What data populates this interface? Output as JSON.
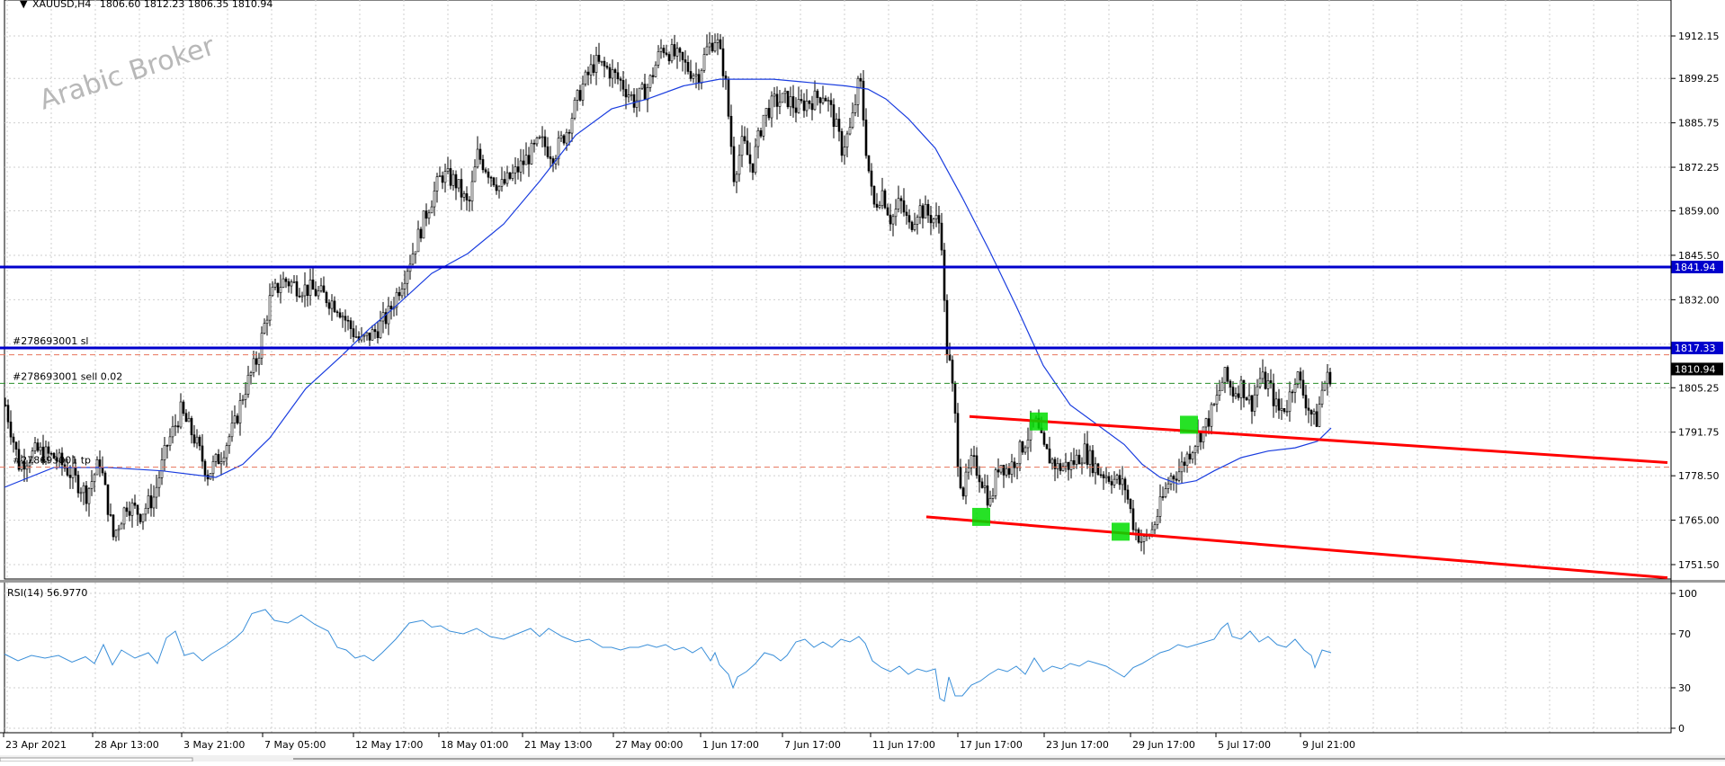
{
  "header": {
    "symbol_label": "XAUUSD,H4",
    "ohlc": "1806.60 1812.23 1806.35 1810.94"
  },
  "watermark": "Arabic Broker",
  "chart_data": [
    {
      "type": "candlestick",
      "symbol": "XAUUSD",
      "timeframe": "H4",
      "ylim": [
        1743,
        1924
      ],
      "y_ticks": [
        1912.15,
        1899.25,
        1885.75,
        1872.25,
        1859.0,
        1845.5,
        1832.0,
        1805.25,
        1791.75,
        1778.5,
        1765.0,
        1751.5
      ],
      "x_ticks": [
        "23 Apr 2021",
        "28 Apr 13:00",
        "3 May 21:00",
        "7 May 05:00",
        "12 May 17:00",
        "18 May 01:00",
        "21 May 13:00",
        "27 May 00:00",
        "1 Jun 17:00",
        "7 Jun 17:00",
        "11 Jun 17:00",
        "17 Jun 17:00",
        "23 Jun 17:00",
        "29 Jun 17:00",
        "5 Jul 17:00",
        "9 Jul 21:00"
      ],
      "x_ticks_left": [
        2,
        101,
        200,
        290,
        391,
        486,
        579,
        680,
        777,
        868,
        966,
        1063,
        1159,
        1255,
        1350,
        1444
      ],
      "grid": true,
      "price_path": [
        [
          5,
          1800
        ],
        [
          20,
          1782
        ],
        [
          40,
          1786
        ],
        [
          60,
          1784
        ],
        [
          75,
          1780
        ],
        [
          95,
          1773
        ],
        [
          110,
          1783
        ],
        [
          125,
          1760
        ],
        [
          140,
          1770
        ],
        [
          155,
          1767
        ],
        [
          170,
          1772
        ],
        [
          185,
          1788
        ],
        [
          200,
          1798
        ],
        [
          215,
          1790
        ],
        [
          230,
          1779
        ],
        [
          245,
          1785
        ],
        [
          260,
          1794
        ],
        [
          270,
          1804
        ],
        [
          285,
          1814
        ],
        [
          300,
          1833
        ],
        [
          315,
          1838
        ],
        [
          330,
          1836
        ],
        [
          345,
          1835
        ],
        [
          360,
          1833
        ],
        [
          375,
          1830
        ],
        [
          385,
          1825
        ],
        [
          400,
          1819
        ],
        [
          415,
          1822
        ],
        [
          430,
          1827
        ],
        [
          445,
          1837
        ],
        [
          460,
          1848
        ],
        [
          475,
          1860
        ],
        [
          490,
          1870
        ],
        [
          505,
          1868
        ],
        [
          520,
          1860
        ],
        [
          530,
          1876
        ],
        [
          540,
          1872
        ],
        [
          555,
          1866
        ],
        [
          570,
          1870
        ],
        [
          585,
          1875
        ],
        [
          600,
          1880
        ],
        [
          615,
          1876
        ],
        [
          630,
          1884
        ],
        [
          645,
          1896
        ],
        [
          660,
          1904
        ],
        [
          675,
          1902
        ],
        [
          690,
          1898
        ],
        [
          705,
          1892
        ],
        [
          720,
          1897
        ],
        [
          735,
          1909
        ],
        [
          750,
          1906
        ],
        [
          765,
          1902
        ],
        [
          775,
          1900
        ],
        [
          785,
          1908
        ],
        [
          795,
          1912
        ],
        [
          805,
          1900
        ],
        [
          815,
          1870
        ],
        [
          825,
          1880
        ],
        [
          835,
          1872
        ],
        [
          848,
          1888
        ],
        [
          860,
          1892
        ],
        [
          875,
          1893
        ],
        [
          885,
          1890
        ],
        [
          895,
          1892
        ],
        [
          905,
          1893
        ],
        [
          915,
          1895
        ],
        [
          925,
          1888
        ],
        [
          935,
          1878
        ],
        [
          945,
          1884
        ],
        [
          955,
          1900
        ],
        [
          962,
          1878
        ],
        [
          970,
          1860
        ],
        [
          980,
          1865
        ],
        [
          990,
          1856
        ],
        [
          1000,
          1862
        ],
        [
          1010,
          1854
        ],
        [
          1020,
          1860
        ],
        [
          1030,
          1858
        ],
        [
          1040,
          1856
        ],
        [
          1045,
          1855
        ],
        [
          1048,
          1840
        ],
        [
          1050,
          1820
        ],
        [
          1055,
          1812
        ],
        [
          1060,
          1800
        ],
        [
          1065,
          1780
        ],
        [
          1070,
          1774
        ],
        [
          1080,
          1783
        ],
        [
          1090,
          1778
        ],
        [
          1100,
          1770
        ],
        [
          1110,
          1783
        ],
        [
          1120,
          1780
        ],
        [
          1135,
          1787
        ],
        [
          1150,
          1795
        ],
        [
          1160,
          1786
        ],
        [
          1175,
          1781
        ],
        [
          1190,
          1782
        ],
        [
          1205,
          1786
        ],
        [
          1220,
          1780
        ],
        [
          1235,
          1778
        ],
        [
          1250,
          1775
        ],
        [
          1260,
          1763
        ],
        [
          1270,
          1758
        ],
        [
          1280,
          1762
        ],
        [
          1290,
          1770
        ],
        [
          1300,
          1778
        ],
        [
          1310,
          1780
        ],
        [
          1320,
          1785
        ],
        [
          1330,
          1790
        ],
        [
          1340,
          1794
        ],
        [
          1350,
          1800
        ],
        [
          1360,
          1809
        ],
        [
          1370,
          1804
        ],
        [
          1380,
          1806
        ],
        [
          1390,
          1800
        ],
        [
          1400,
          1808
        ],
        [
          1410,
          1806
        ],
        [
          1420,
          1798
        ],
        [
          1430,
          1800
        ],
        [
          1440,
          1810
        ],
        [
          1450,
          1802
        ],
        [
          1462,
          1794
        ],
        [
          1470,
          1806
        ],
        [
          1480,
          1810
        ]
      ],
      "moving_average": [
        [
          5,
          1775
        ],
        [
          60,
          1781
        ],
        [
          120,
          1781
        ],
        [
          180,
          1780
        ],
        [
          240,
          1778
        ],
        [
          270,
          1782
        ],
        [
          300,
          1790
        ],
        [
          340,
          1805
        ],
        [
          380,
          1815
        ],
        [
          410,
          1823
        ],
        [
          440,
          1830
        ],
        [
          480,
          1840
        ],
        [
          520,
          1846
        ],
        [
          560,
          1855
        ],
        [
          600,
          1868
        ],
        [
          640,
          1882
        ],
        [
          680,
          1890
        ],
        [
          720,
          1893
        ],
        [
          760,
          1897
        ],
        [
          800,
          1899
        ],
        [
          820,
          1899
        ],
        [
          860,
          1899
        ],
        [
          900,
          1898
        ],
        [
          940,
          1897
        ],
        [
          965,
          1896
        ],
        [
          985,
          1893
        ],
        [
          1010,
          1887
        ],
        [
          1040,
          1878
        ],
        [
          1070,
          1863
        ],
        [
          1100,
          1847
        ],
        [
          1130,
          1830
        ],
        [
          1160,
          1812
        ],
        [
          1190,
          1800
        ],
        [
          1220,
          1794
        ],
        [
          1250,
          1788
        ],
        [
          1270,
          1782
        ],
        [
          1290,
          1778
        ],
        [
          1310,
          1776
        ],
        [
          1330,
          1777
        ],
        [
          1350,
          1780
        ],
        [
          1380,
          1784
        ],
        [
          1410,
          1786
        ],
        [
          1440,
          1787
        ],
        [
          1465,
          1789
        ],
        [
          1480,
          1793
        ]
      ],
      "horizontal_lines": [
        {
          "price": 1841.94,
          "label": "1841.94",
          "color": "#0000cc",
          "style": "solid"
        },
        {
          "price": 1817.33,
          "label": "1817.33",
          "color": "#0000cc",
          "style": "solid",
          "order_label": "#278693001 sl"
        },
        {
          "price": 1815.25,
          "color": "#e8735a",
          "style": "dashed"
        },
        {
          "price": 1810.94,
          "label": "1810.94",
          "color": "#000000",
          "style": "price"
        },
        {
          "price": 1806.6,
          "color": "#2a8f2a",
          "style": "dashed",
          "order_label": "#278693001 sell 0.02"
        },
        {
          "price": 1781.1,
          "color": "#e8735a",
          "style": "dashed",
          "order_label": "#278693001 tp"
        }
      ],
      "trendlines": [
        {
          "name": "channel-top",
          "from": [
            1078,
            1796.5
          ],
          "to": [
            1854,
            1782.5
          ],
          "color": "#ff0000"
        },
        {
          "name": "channel-bottom",
          "from": [
            1030,
            1766.0
          ],
          "to": [
            1854,
            1747.5
          ],
          "color": "#ff0000"
        }
      ],
      "markers": [
        {
          "x": 1091,
          "price": 1766.0,
          "color": "#00dd00"
        },
        {
          "x": 1155,
          "price": 1795.0,
          "color": "#00dd00"
        },
        {
          "x": 1246,
          "price": 1761.5,
          "color": "#00dd00"
        },
        {
          "x": 1322,
          "price": 1794.0,
          "color": "#00dd00"
        }
      ]
    },
    {
      "type": "line",
      "indicator": "RSI(14)",
      "title": "RSI(14) 56.9770",
      "ylim": [
        0,
        100
      ],
      "y_ticks": [
        100,
        70,
        30,
        0
      ],
      "series_points": [
        [
          5,
          55
        ],
        [
          20,
          50
        ],
        [
          35,
          54
        ],
        [
          50,
          52
        ],
        [
          65,
          54
        ],
        [
          80,
          49
        ],
        [
          95,
          53
        ],
        [
          105,
          48
        ],
        [
          115,
          62
        ],
        [
          125,
          47
        ],
        [
          135,
          58
        ],
        [
          150,
          52
        ],
        [
          165,
          56
        ],
        [
          175,
          48
        ],
        [
          185,
          67
        ],
        [
          195,
          72
        ],
        [
          205,
          54
        ],
        [
          215,
          56
        ],
        [
          225,
          50
        ],
        [
          235,
          55
        ],
        [
          250,
          61
        ],
        [
          262,
          67
        ],
        [
          270,
          72
        ],
        [
          280,
          85
        ],
        [
          295,
          88
        ],
        [
          305,
          80
        ],
        [
          320,
          78
        ],
        [
          335,
          84
        ],
        [
          350,
          77
        ],
        [
          365,
          72
        ],
        [
          375,
          60
        ],
        [
          385,
          58
        ],
        [
          395,
          52
        ],
        [
          405,
          54
        ],
        [
          415,
          50
        ],
        [
          425,
          56
        ],
        [
          440,
          66
        ],
        [
          455,
          78
        ],
        [
          470,
          80
        ],
        [
          480,
          75
        ],
        [
          490,
          76
        ],
        [
          500,
          72
        ],
        [
          515,
          70
        ],
        [
          530,
          74
        ],
        [
          545,
          68
        ],
        [
          560,
          66
        ],
        [
          575,
          70
        ],
        [
          590,
          74
        ],
        [
          600,
          68
        ],
        [
          610,
          74
        ],
        [
          625,
          68
        ],
        [
          640,
          64
        ],
        [
          655,
          66
        ],
        [
          670,
          60
        ],
        [
          680,
          60
        ],
        [
          690,
          58
        ],
        [
          700,
          60
        ],
        [
          710,
          60
        ],
        [
          720,
          62
        ],
        [
          730,
          60
        ],
        [
          740,
          62
        ],
        [
          750,
          58
        ],
        [
          760,
          60
        ],
        [
          770,
          56
        ],
        [
          780,
          60
        ],
        [
          790,
          50
        ],
        [
          795,
          56
        ],
        [
          800,
          47
        ],
        [
          810,
          40
        ],
        [
          815,
          30
        ],
        [
          820,
          38
        ],
        [
          830,
          42
        ],
        [
          840,
          48
        ],
        [
          850,
          56
        ],
        [
          860,
          54
        ],
        [
          868,
          50
        ],
        [
          875,
          54
        ],
        [
          885,
          64
        ],
        [
          895,
          66
        ],
        [
          905,
          60
        ],
        [
          915,
          64
        ],
        [
          925,
          60
        ],
        [
          935,
          66
        ],
        [
          945,
          64
        ],
        [
          955,
          68
        ],
        [
          962,
          63
        ],
        [
          970,
          50
        ],
        [
          980,
          45
        ],
        [
          990,
          42
        ],
        [
          1000,
          46
        ],
        [
          1010,
          40
        ],
        [
          1020,
          44
        ],
        [
          1030,
          42
        ],
        [
          1040,
          44
        ],
        [
          1045,
          22
        ],
        [
          1050,
          20
        ],
        [
          1055,
          38
        ],
        [
          1062,
          24
        ],
        [
          1070,
          24
        ],
        [
          1080,
          32
        ],
        [
          1090,
          35
        ],
        [
          1100,
          40
        ],
        [
          1110,
          44
        ],
        [
          1120,
          42
        ],
        [
          1130,
          46
        ],
        [
          1140,
          40
        ],
        [
          1150,
          52
        ],
        [
          1160,
          42
        ],
        [
          1170,
          46
        ],
        [
          1180,
          44
        ],
        [
          1190,
          48
        ],
        [
          1200,
          46
        ],
        [
          1210,
          50
        ],
        [
          1220,
          48
        ],
        [
          1230,
          46
        ],
        [
          1240,
          42
        ],
        [
          1250,
          38
        ],
        [
          1260,
          45
        ],
        [
          1270,
          48
        ],
        [
          1280,
          52
        ],
        [
          1290,
          56
        ],
        [
          1300,
          58
        ],
        [
          1310,
          62
        ],
        [
          1320,
          60
        ],
        [
          1330,
          62
        ],
        [
          1340,
          64
        ],
        [
          1350,
          66
        ],
        [
          1358,
          74
        ],
        [
          1365,
          78
        ],
        [
          1370,
          68
        ],
        [
          1380,
          66
        ],
        [
          1390,
          72
        ],
        [
          1400,
          64
        ],
        [
          1410,
          68
        ],
        [
          1420,
          62
        ],
        [
          1430,
          60
        ],
        [
          1440,
          66
        ],
        [
          1450,
          58
        ],
        [
          1458,
          54
        ],
        [
          1462,
          45
        ],
        [
          1470,
          58
        ],
        [
          1480,
          56
        ]
      ]
    }
  ]
}
